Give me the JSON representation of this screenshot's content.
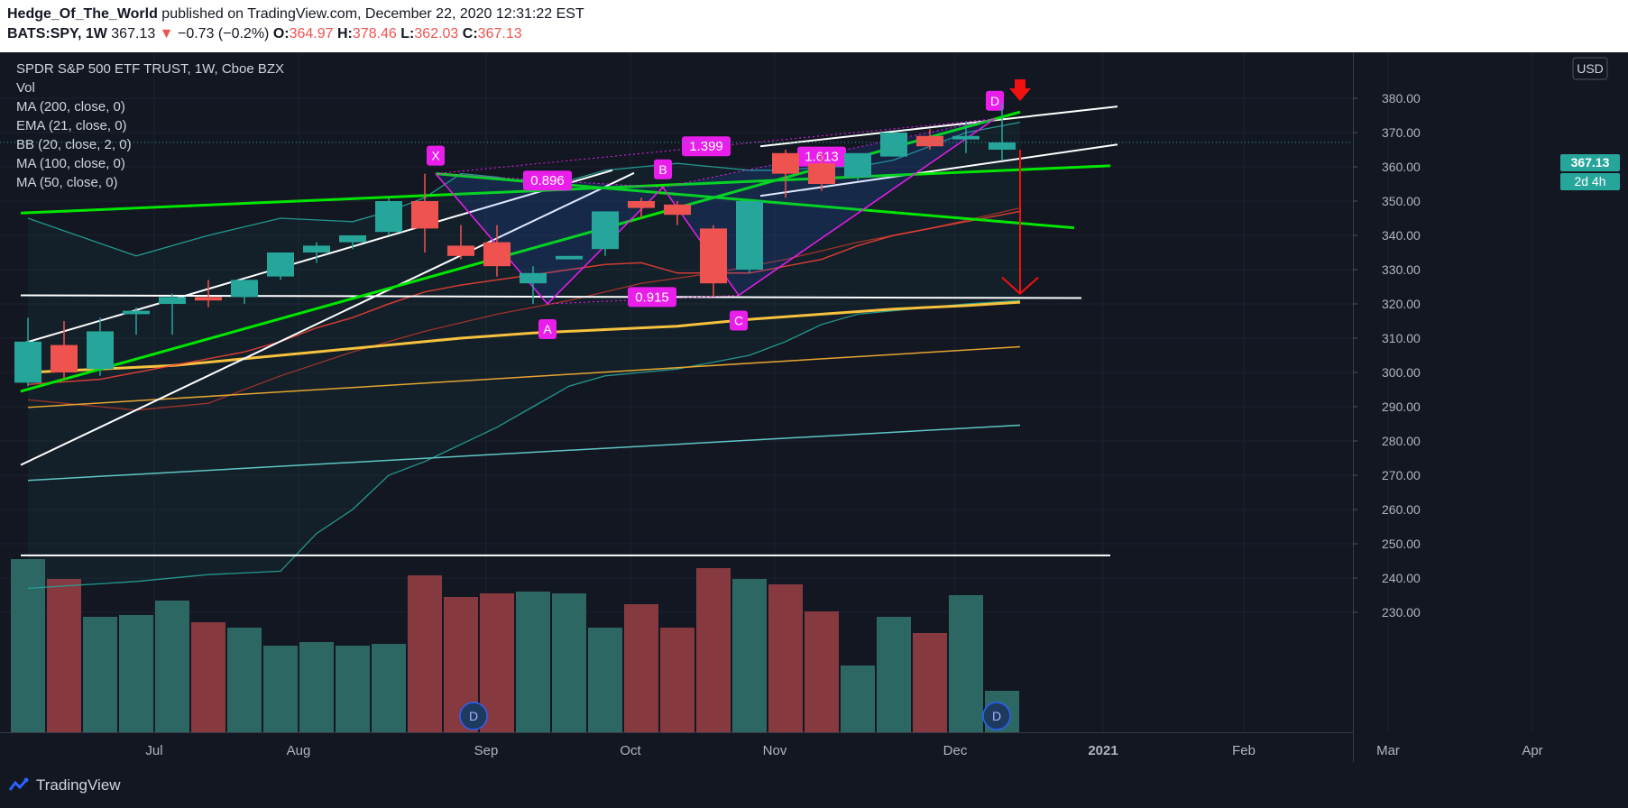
{
  "header": {
    "author": "Hedge_Of_The_World",
    "published": "published on TradingView.com, December 22, 2020 12:31:22 EST",
    "symbol": "BATS:SPY, 1W",
    "last": "367.13",
    "change": "−0.73 (−0.2%)",
    "open_label": "O:",
    "open": "364.97",
    "high_label": "H:",
    "high": "378.46",
    "low_label": "L:",
    "low": "362.03",
    "close_label": "C:",
    "close": "367.13"
  },
  "legend": [
    "SPDR S&P 500 ETF TRUST, 1W, Cboe BZX",
    "Vol",
    "MA (200, close, 0)",
    "EMA (21, close, 0)",
    "BB (20, close, 2, 0)",
    "MA (100, close, 0)",
    "MA (50, close, 0)"
  ],
  "currency": "USD",
  "price_tag": "367.13",
  "countdown_tag": "2d 4h",
  "footer": {
    "brand": "TradingView"
  },
  "colors": {
    "up": "#26a69a",
    "down": "#ef5350",
    "pattern": "#e91eeb",
    "green_line": "#00e600",
    "arrow": "#f21111",
    "ma200": "#5fc7c7",
    "ema21": "#26a69a",
    "ma100": "#e6a531",
    "ma50": "#f7c23e"
  },
  "chart_data": {
    "type": "candlestick",
    "symbol": "SPY",
    "timeframe": "1W",
    "y_ticks": [
      380,
      370,
      360,
      350,
      340,
      330,
      320,
      310,
      300,
      290,
      280,
      270,
      260,
      250,
      240,
      230
    ],
    "y_tick_labels": [
      "380.00",
      "370.00",
      "360.00",
      "350.00",
      "340.00",
      "330.00",
      "320.00",
      "310.00",
      "300.00",
      "290.00",
      "280.00",
      "270.00",
      "260.00",
      "250.00",
      "240.00",
      "230.00"
    ],
    "x_tick_labels": [
      "Jul",
      "Aug",
      "Sep",
      "Oct",
      "Nov",
      "Dec",
      "2021",
      "Feb",
      "Mar",
      "Apr"
    ],
    "x_tick_weeks": [
      3.5,
      7.5,
      12.7,
      16.7,
      20.7,
      25.7,
      29.8,
      33.7,
      37.7,
      41.7
    ],
    "candles": [
      {
        "o": 297,
        "h": 316,
        "l": 296,
        "c": 309
      },
      {
        "o": 308,
        "h": 315,
        "l": 298,
        "c": 300
      },
      {
        "o": 301,
        "h": 316,
        "l": 299,
        "c": 312
      },
      {
        "o": 317,
        "h": 319,
        "l": 311,
        "c": 318
      },
      {
        "o": 320,
        "h": 323,
        "l": 311,
        "c": 322
      },
      {
        "o": 322,
        "h": 327,
        "l": 319,
        "c": 321
      },
      {
        "o": 322,
        "h": 327,
        "l": 320,
        "c": 327
      },
      {
        "o": 328,
        "h": 335,
        "l": 327,
        "c": 335
      },
      {
        "o": 335,
        "h": 338,
        "l": 332,
        "c": 337
      },
      {
        "o": 338,
        "h": 340,
        "l": 336,
        "c": 340
      },
      {
        "o": 341,
        "h": 351,
        "l": 340,
        "c": 350
      },
      {
        "o": 350,
        "h": 358,
        "l": 335,
        "c": 342
      },
      {
        "o": 337,
        "h": 343,
        "l": 333,
        "c": 334
      },
      {
        "o": 338,
        "h": 343,
        "l": 328,
        "c": 331
      },
      {
        "o": 326,
        "h": 331,
        "l": 320,
        "c": 329
      },
      {
        "o": 333,
        "h": 334,
        "l": 333,
        "c": 334
      },
      {
        "o": 336,
        "h": 347,
        "l": 334,
        "c": 347
      },
      {
        "o": 350,
        "h": 351,
        "l": 345,
        "c": 348
      },
      {
        "o": 349,
        "h": 350,
        "l": 343,
        "c": 346
      },
      {
        "o": 342,
        "h": 343,
        "l": 322,
        "c": 326
      },
      {
        "o": 330,
        "h": 350,
        "l": 329,
        "c": 350
      },
      {
        "o": 364,
        "h": 365,
        "l": 351,
        "c": 358
      },
      {
        "o": 361,
        "h": 364,
        "l": 353,
        "c": 355
      },
      {
        "o": 357,
        "h": 364,
        "l": 356,
        "c": 364
      },
      {
        "o": 363,
        "h": 370,
        "l": 363,
        "c": 370
      },
      {
        "o": 369,
        "h": 371,
        "l": 365,
        "c": 366
      },
      {
        "o": 368,
        "h": 373,
        "l": 364,
        "c": 369
      },
      {
        "o": 365,
        "h": 378.46,
        "l": 362.03,
        "c": 367.13
      }
    ],
    "volume": [
      {
        "v": 96,
        "up": true
      },
      {
        "v": 85,
        "up": false
      },
      {
        "v": 64,
        "up": true
      },
      {
        "v": 65,
        "up": true
      },
      {
        "v": 73,
        "up": true
      },
      {
        "v": 61,
        "up": false
      },
      {
        "v": 58,
        "up": true
      },
      {
        "v": 48,
        "up": true
      },
      {
        "v": 50,
        "up": true
      },
      {
        "v": 48,
        "up": true
      },
      {
        "v": 49,
        "up": true
      },
      {
        "v": 87,
        "up": false
      },
      {
        "v": 75,
        "up": false
      },
      {
        "v": 77,
        "up": false
      },
      {
        "v": 78,
        "up": true
      },
      {
        "v": 77,
        "up": true
      },
      {
        "v": 58,
        "up": true
      },
      {
        "v": 71,
        "up": false
      },
      {
        "v": 58,
        "up": false
      },
      {
        "v": 91,
        "up": false
      },
      {
        "v": 85,
        "up": true
      },
      {
        "v": 82,
        "up": false
      },
      {
        "v": 67,
        "up": false
      },
      {
        "v": 37,
        "up": true
      },
      {
        "v": 64,
        "up": true
      },
      {
        "v": 55,
        "up": false
      },
      {
        "v": 76,
        "up": true
      },
      {
        "v": 23,
        "up": true
      }
    ],
    "volume_level": 64,
    "moving_averages": {
      "ma200": {
        "w": [
          0,
          27.5
        ],
        "v": [
          268.5,
          284.6
        ]
      },
      "ma100": {
        "w": [
          0,
          27.5
        ],
        "v": [
          289.8,
          307.5
        ]
      },
      "ma50": {
        "w": [
          0,
          2,
          4,
          6,
          8,
          10,
          12,
          14,
          16,
          18,
          20,
          22,
          24,
          26,
          27.5
        ],
        "v": [
          300,
          301,
          302,
          304,
          306,
          308,
          310,
          311.5,
          312.5,
          313.5,
          315.5,
          317,
          318.5,
          319.5,
          320.5
        ]
      },
      "ema21": {
        "w": [
          0,
          2,
          3,
          4,
          5,
          6,
          7,
          8,
          9,
          10,
          11,
          12,
          13,
          14,
          15,
          16,
          17,
          18,
          19,
          20,
          21,
          22,
          23,
          24,
          25,
          26,
          27.5
        ],
        "v": [
          296.5,
          298,
          300,
          302,
          304,
          306,
          309,
          313,
          316,
          320,
          323.5,
          325.5,
          327,
          328.5,
          330,
          331.5,
          332,
          329,
          329,
          329,
          331,
          333,
          337,
          340,
          342,
          344,
          347
        ]
      },
      "bb_basis": {
        "w": [
          0,
          3,
          5,
          7,
          9,
          11,
          13,
          15,
          17,
          19,
          21,
          23,
          25,
          27.5
        ],
        "v": [
          292,
          289,
          291,
          299,
          306,
          312,
          317,
          321,
          326,
          329,
          333,
          338,
          342,
          348
        ]
      },
      "bb_upper": {
        "w": [
          0,
          3,
          5,
          7,
          9,
          10,
          11,
          12,
          13,
          14,
          15,
          16,
          17,
          18,
          19,
          20,
          21,
          22,
          23,
          24,
          25,
          26,
          27.5
        ],
        "v": [
          345,
          334,
          340,
          345,
          344,
          347,
          351,
          358,
          357,
          355,
          356,
          359,
          360,
          361,
          360,
          359,
          359,
          360,
          360,
          362,
          366,
          370,
          373
        ]
      },
      "bb_lower": {
        "w": [
          0,
          3,
          5,
          7,
          8,
          9,
          10,
          11,
          12,
          13,
          14,
          15,
          16,
          17,
          18,
          19,
          20,
          21,
          22,
          23,
          24,
          25,
          26,
          27.5
        ],
        "v": [
          237,
          239,
          241,
          242,
          253,
          260,
          270,
          274,
          279,
          284,
          290,
          296,
          299,
          300,
          301,
          303,
          305,
          309,
          314,
          317,
          318,
          319,
          320,
          321
        ]
      }
    },
    "harmonic_pattern": {
      "points": [
        {
          "label": "X",
          "w": 11.3,
          "v": 358
        },
        {
          "label": "A",
          "w": 14.4,
          "v": 320
        },
        {
          "label": "B",
          "w": 17.6,
          "v": 354
        },
        {
          "label": "C",
          "w": 19.7,
          "v": 322.5
        },
        {
          "label": "D",
          "w": 26.8,
          "v": 374
        }
      ],
      "ratios": [
        {
          "label": "0.896",
          "w": 14.4,
          "v": 356
        },
        {
          "label": "0.915",
          "w": 17.3,
          "v": 322
        },
        {
          "label": "1.399",
          "w": 18.8,
          "v": 366
        },
        {
          "label": "1.613",
          "w": 22.0,
          "v": 363
        }
      ]
    },
    "trendlines": [
      {
        "color": "white",
        "w": [
          -0.2,
          29.2
        ],
        "v": [
          322.5,
          321.7
        ]
      },
      {
        "color": "white",
        "w": [
          -0.2,
          16.2
        ],
        "v": [
          308.3,
          359
        ]
      },
      {
        "color": "white",
        "w": [
          -0.2,
          16.8
        ],
        "v": [
          273,
          358.2
        ]
      },
      {
        "color": "white",
        "w": [
          20.3,
          30.2
        ],
        "v": [
          351.5,
          366.5
        ]
      },
      {
        "color": "white",
        "w": [
          20.3,
          30.2
        ],
        "v": [
          366,
          377.6
        ]
      },
      {
        "color": "green",
        "w": [
          -0.2,
          30.0
        ],
        "v": [
          346.5,
          360.3
        ]
      },
      {
        "color": "green",
        "w": [
          -0.2,
          27.5
        ],
        "v": [
          294.5,
          376
        ]
      },
      {
        "color": "green",
        "w": [
          11.3,
          29.0
        ],
        "v": [
          358,
          342.2
        ]
      },
      {
        "color": "white",
        "w": [
          -0.2,
          30.0
        ],
        "v": [
          246.6,
          246.6
        ]
      }
    ],
    "target_arrow": {
      "w": 27.5,
      "from": 365,
      "to": 323
    }
  }
}
